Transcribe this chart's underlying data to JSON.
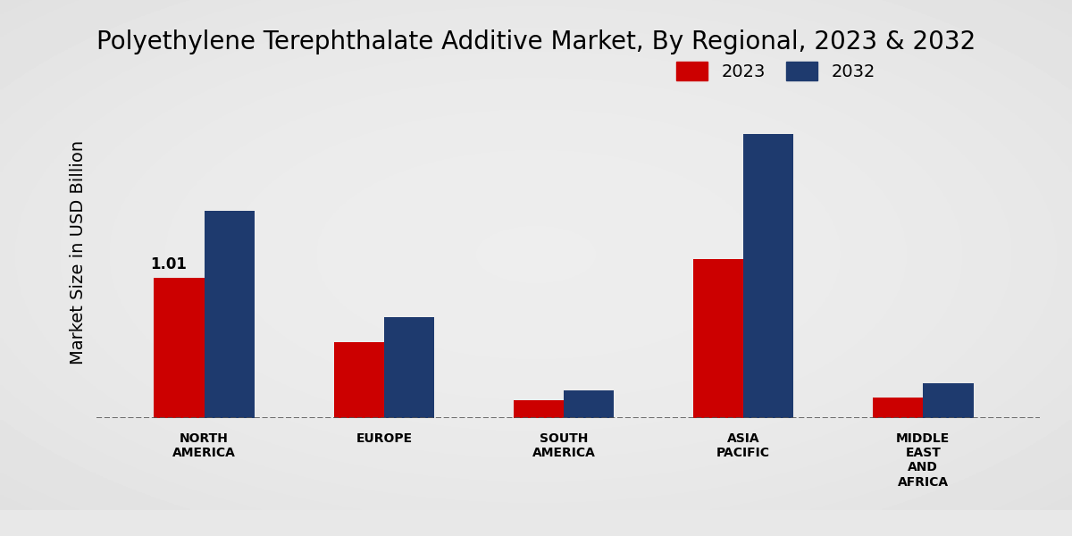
{
  "title": "Polyethylene Terephthalate Additive Market, By Regional, 2023 & 2032",
  "ylabel": "Market Size in USD Billion",
  "categories": [
    "NORTH\nAMERICA",
    "EUROPE",
    "SOUTH\nAMERICA",
    "ASIA\nPACIFIC",
    "MIDDLE\nEAST\nAND\nAFRICA"
  ],
  "values_2023": [
    1.01,
    0.55,
    0.13,
    1.15,
    0.15
  ],
  "values_2032": [
    1.5,
    0.73,
    0.2,
    2.05,
    0.25
  ],
  "color_2023": "#cc0000",
  "color_2032": "#1e3a6e",
  "annotation_value": "1.01",
  "annotation_bar": 0,
  "bar_width": 0.28,
  "ylim": [
    0,
    2.4
  ],
  "legend_labels": [
    "2023",
    "2032"
  ],
  "title_fontsize": 20,
  "axis_label_fontsize": 14,
  "tick_fontsize": 10,
  "legend_fontsize": 14,
  "bottom_bar_color": "#b30000",
  "bottom_bar_height": 0.048
}
